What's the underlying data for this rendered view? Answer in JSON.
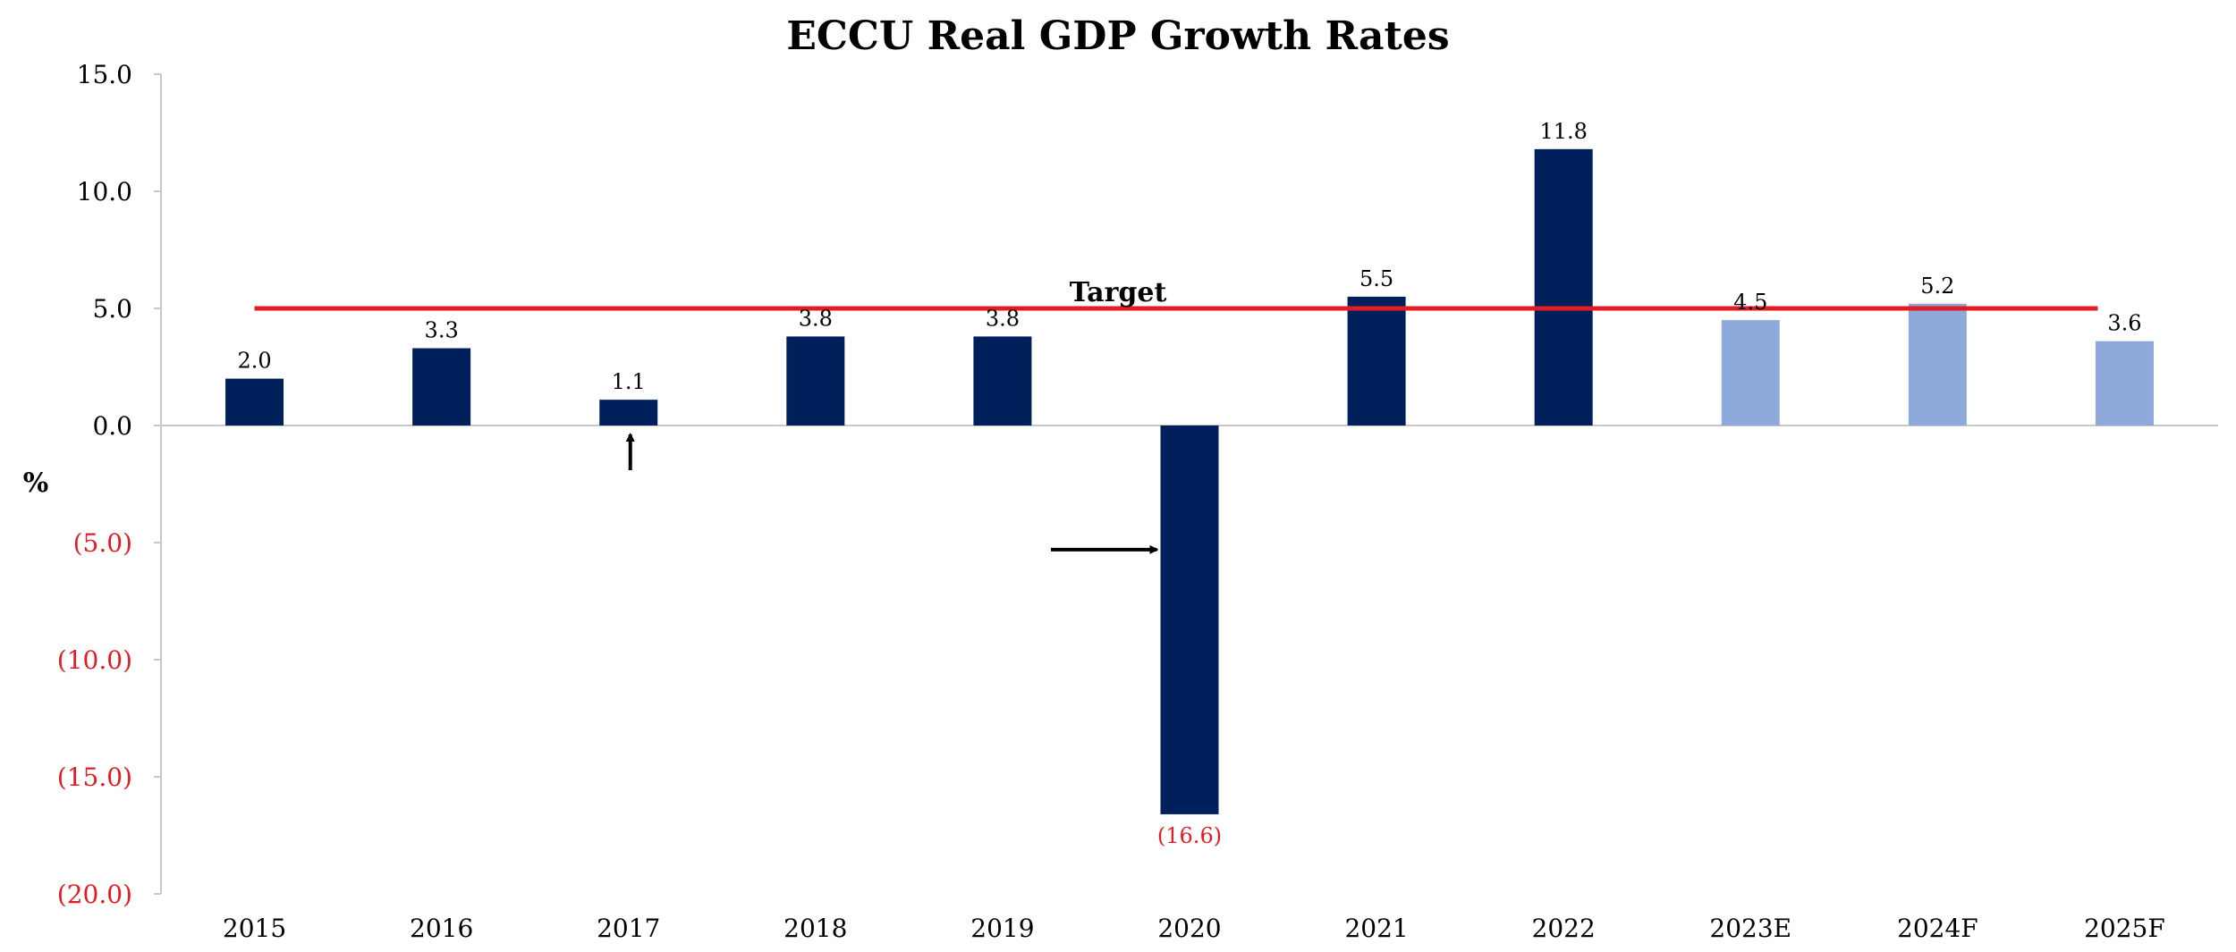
{
  "chart_data": {
    "type": "bar",
    "title": "ECCU Real GDP Growth Rates",
    "ylabel": "%",
    "categories": [
      "2015",
      "2016",
      "2017",
      "2018",
      "2019",
      "2020",
      "2021",
      "2022",
      "2023E",
      "2024F",
      "2025F"
    ],
    "values": [
      2.0,
      3.3,
      1.1,
      3.8,
      3.8,
      -16.6,
      5.5,
      11.8,
      4.5,
      5.2,
      3.6
    ],
    "value_labels": [
      "2.0",
      "3.3",
      "1.1",
      "3.8",
      "3.8",
      "(16.6)",
      "5.5",
      "11.8",
      "4.5",
      "5.2",
      "3.6"
    ],
    "bar_kinds": [
      "actual",
      "actual",
      "actual",
      "actual",
      "actual",
      "actual",
      "actual",
      "actual",
      "estimate",
      "forecast",
      "forecast"
    ],
    "ylim": [
      -20,
      15
    ],
    "yticks": [
      15,
      10,
      5,
      0,
      -5,
      -10,
      -15,
      -20
    ],
    "ytick_labels": [
      "15.0",
      "10.0",
      "5.0",
      "0.0",
      "(5.0)",
      "(10.0)",
      "(15.0)",
      "(20.0)"
    ],
    "target": {
      "label": "Target",
      "value": 5.0,
      "color": "#e31b23"
    },
    "colors": {
      "actual": "#00205b",
      "estimate": "#8eaadb",
      "forecast": "#8eaadb",
      "negative_text": "#e31b23",
      "positive_text": "#000000",
      "axis": "#c8c8c8"
    },
    "annotations": [
      {
        "type": "arrow",
        "direction": "up",
        "category": "2017"
      },
      {
        "type": "arrow",
        "direction": "right",
        "category": "2020"
      }
    ],
    "grid": false,
    "legend": "none"
  }
}
